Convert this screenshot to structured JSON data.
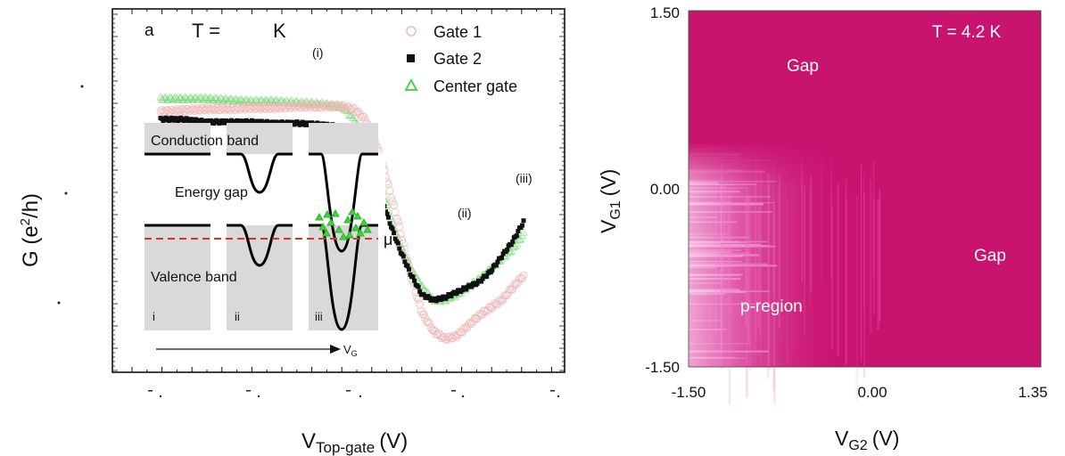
{
  "chart_data": [
    {
      "type": "line",
      "panel_label": "a",
      "temperature_text": "T =",
      "temperature_unit": "K",
      "xlabel": "V",
      "xlabel_sub": "Top-gate",
      "xlabel_unit": "(V)",
      "ylabel": "G (e",
      "ylabel_sup": "2",
      "ylabel_tail": "/h)",
      "grid": false,
      "legend_position": "top-right",
      "region_labels": [
        "(i)",
        "(ii)",
        "(iii)"
      ],
      "series": [
        {
          "name": "Gate 1",
          "marker": "open-circle",
          "color": "#f0b8b8",
          "x": [
            -1.0,
            -0.9,
            -0.8,
            -0.7,
            -0.6,
            -0.5,
            -0.4,
            -0.3,
            -0.2,
            -0.15,
            -0.1,
            -0.05,
            0.0,
            0.05,
            0.1,
            0.15,
            0.2,
            0.25,
            0.3,
            0.35,
            0.4,
            0.45,
            0.5,
            0.55,
            0.6
          ],
          "y": [
            0.93,
            0.935,
            0.94,
            0.94,
            0.945,
            0.945,
            0.95,
            0.95,
            0.95,
            0.94,
            0.9,
            0.8,
            0.65,
            0.48,
            0.3,
            0.15,
            0.08,
            0.05,
            0.06,
            0.1,
            0.14,
            0.17,
            0.2,
            0.25,
            0.3
          ]
        },
        {
          "name": "Gate 2",
          "marker": "filled-square",
          "color": "#111111",
          "x": [
            -1.0,
            -0.9,
            -0.8,
            -0.7,
            -0.6,
            -0.5,
            -0.4,
            -0.3,
            -0.2,
            -0.15,
            -0.1,
            -0.05,
            0.0,
            0.05,
            0.1,
            0.15,
            0.2,
            0.25,
            0.3,
            0.35,
            0.4,
            0.45,
            0.5,
            0.55,
            0.6
          ],
          "y": [
            0.9,
            0.9,
            0.89,
            0.89,
            0.89,
            0.885,
            0.885,
            0.88,
            0.87,
            0.84,
            0.78,
            0.66,
            0.52,
            0.4,
            0.3,
            0.22,
            0.2,
            0.21,
            0.23,
            0.25,
            0.27,
            0.31,
            0.37,
            0.43,
            0.51
          ]
        },
        {
          "name": "Center gate",
          "marker": "open-triangle",
          "color": "#6cd66c",
          "x": [
            -1.0,
            -0.9,
            -0.8,
            -0.7,
            -0.6,
            -0.5,
            -0.4,
            -0.3,
            -0.2,
            -0.15,
            -0.1,
            -0.05,
            0.0,
            0.05,
            0.1,
            0.15,
            0.2,
            0.25,
            0.3,
            0.35,
            0.4,
            0.45,
            0.5,
            0.55,
            0.6
          ],
          "y": [
            0.98,
            0.98,
            0.98,
            0.975,
            0.97,
            0.97,
            0.965,
            0.96,
            0.95,
            0.9,
            0.82,
            0.7,
            0.55,
            0.42,
            0.32,
            0.25,
            0.2,
            0.2,
            0.22,
            0.25,
            0.28,
            0.32,
            0.36,
            0.4,
            0.46
          ]
        }
      ],
      "inset": {
        "top_label": "Conduction band",
        "gap_label": "Energy gap",
        "bottom_label": "Valence band",
        "mu_label": "μ",
        "axis_label": "V",
        "axis_sub": "G",
        "panel_labels": [
          "i",
          "ii",
          "iii"
        ],
        "well_depth": [
          0,
          0.5,
          1.0
        ]
      }
    },
    {
      "type": "heatmap",
      "xlabel": "V",
      "xlabel_sub": "G2",
      "xlabel_unit": "(V)",
      "ylabel": "V",
      "ylabel_sub": "G1",
      "ylabel_unit": "(V)",
      "xlim": [
        -1.5,
        1.35
      ],
      "ylim": [
        -1.5,
        1.5
      ],
      "xticks": [
        "-1.50",
        "0.00",
        "1.35"
      ],
      "yticks": [
        "1.50",
        "0.00",
        "-1.50"
      ],
      "colors": {
        "base": "#c8136f",
        "bright": "#f8b8ee"
      },
      "annotation": "T = 4.2 K",
      "labels": [
        "Gap",
        "Gap",
        "p-region"
      ]
    }
  ]
}
